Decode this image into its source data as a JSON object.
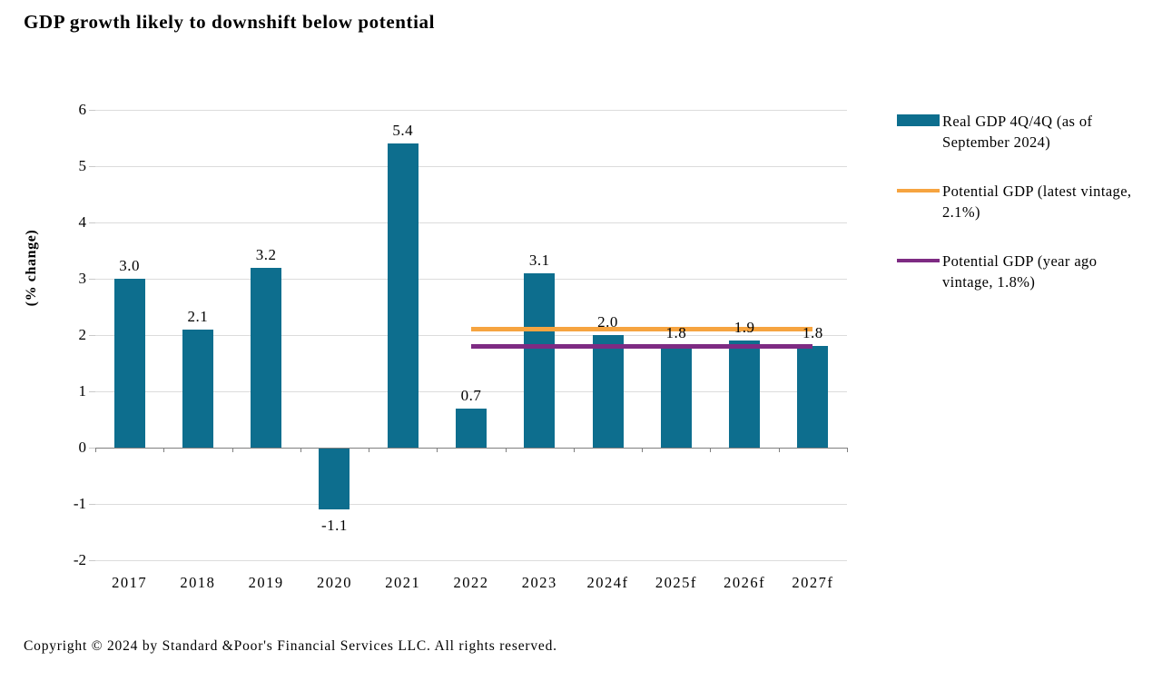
{
  "copyright": "Copyright © 2024 by Standard &Poor's Financial Services LLC. All rights reserved.",
  "chart_data": {
    "type": "bar",
    "title": "GDP growth likely to downshift below potential",
    "xlabel": "",
    "ylabel": "(% change)",
    "ylim": [
      -2,
      6
    ],
    "ytick_step": 1,
    "grid": true,
    "legend_position": "right",
    "categories": [
      "2017",
      "2018",
      "2019",
      "2020",
      "2021",
      "2022",
      "2023",
      "2024f",
      "2025f",
      "2026f",
      "2027f"
    ],
    "series": [
      {
        "name": "Real GDP 4Q/4Q (as of September 2024)",
        "kind": "bar",
        "color": "#0d6e8e",
        "values": [
          3.0,
          2.1,
          3.2,
          -1.1,
          5.4,
          0.7,
          3.1,
          2.0,
          1.8,
          1.9,
          1.8
        ],
        "value_labels": [
          "3.0",
          "2.1",
          "3.2",
          "-1.1",
          "5.4",
          "0.7",
          "3.1",
          "2.0",
          "1.8",
          "1.9",
          "1.8"
        ]
      },
      {
        "name": "Potential GDP (latest vintage, 2.1%)",
        "kind": "line",
        "color": "#f6a440",
        "value": 2.1,
        "x_span": [
          "2022",
          "2027f"
        ]
      },
      {
        "name": "Potential GDP (year ago vintage, 1.8%)",
        "kind": "line",
        "color": "#7e2b83",
        "value": 1.8,
        "x_span": [
          "2022",
          "2027f"
        ]
      }
    ],
    "legend_items": [
      {
        "swatch": "bar",
        "color": "#0d6e8e",
        "label": "Real GDP 4Q/4Q (as of September 2024)"
      },
      {
        "swatch": "line",
        "color": "#f6a440",
        "label": "Potential GDP (latest vintage, 2.1%)"
      },
      {
        "swatch": "line",
        "color": "#7e2b83",
        "label": "Potential GDP (year ago vintage, 1.8%)"
      }
    ]
  }
}
